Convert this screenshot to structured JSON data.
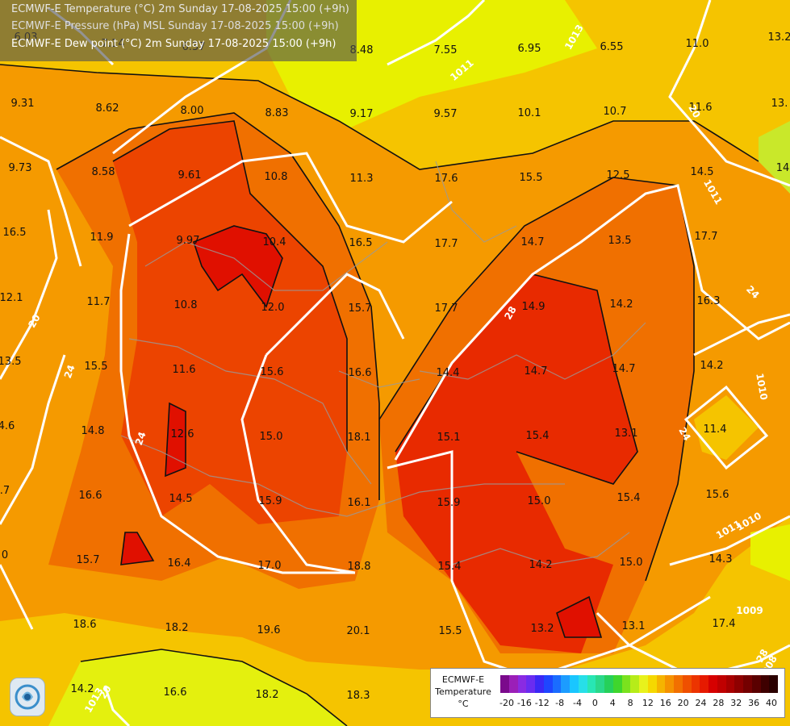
{
  "header": {
    "line1": "ECMWF-E Temperature (°C) 2m Sunday 17-08-2025 15:00 (+9h)",
    "line2": "ECMWF-E Pressure (hPa) MSL Sunday 17-08-2025 15:00 (+9h)",
    "line3": "ECMWF-E Dew point (°C) 2m Sunday 17-08-2025 15:00 (+9h)"
  },
  "dewpoint_labels": [
    "6.03",
    "7.14",
    "6.37",
    "8.48",
    "7.55",
    "6.95",
    "6.55",
    "11.0",
    "13.2",
    "9.31",
    "8.62",
    "8.00",
    "8.83",
    "9.17",
    "9.57",
    "10.1",
    "10.7",
    "11.6",
    "13.",
    "9.73",
    "8.58",
    "9.61",
    "10.8",
    "11.3",
    "17.6",
    "15.5",
    "12.5",
    "14.5",
    "14",
    "16.5",
    "11.9",
    "9.97",
    "10.4",
    "16.5",
    "17.7",
    "14.7",
    "13.5",
    "17.7",
    "12.1",
    "11.7",
    "10.8",
    "12.0",
    "15.7",
    "17.7",
    "14.9",
    "14.2",
    "16.3",
    "13.5",
    "15.5",
    "11.6",
    "15.6",
    "16.6",
    "14.4",
    "14.7",
    "14.7",
    "14.2",
    "4.6",
    "14.8",
    "12.6",
    "15.0",
    "18.1",
    "15.1",
    "15.4",
    "13.1",
    "11.4",
    "16.6",
    "14.5",
    "15.9",
    "16.1",
    "15.9",
    "15.0",
    "15.4",
    "15.6",
    ".7",
    "15.7",
    "16.4",
    "17.0",
    "18.8",
    "15.4",
    "14.2",
    "15.0",
    "14.3",
    "0",
    "18.6",
    "18.2",
    "19.6",
    "20.1",
    "15.5",
    "13.2",
    "13.1",
    "17.4",
    "14.2",
    "16.6",
    "18.2",
    "18.3"
  ],
  "isobar_labels": [
    "1013",
    "1011",
    "1011",
    "1011",
    "1010",
    "1010",
    "1009",
    "1008",
    "1013"
  ],
  "isotherm_labels": [
    "20",
    "20",
    "24",
    "24",
    "28",
    "24",
    "24",
    "28",
    "20"
  ],
  "legend": {
    "title_line1": "ECMWF-E",
    "title_line2": "Temperature",
    "title_line3": "°C",
    "ticks": [
      "-20",
      "-16",
      "-12",
      "-8",
      "-4",
      "0",
      "4",
      "8",
      "12",
      "16",
      "20",
      "24",
      "28",
      "32",
      "36",
      "40"
    ],
    "colors": [
      "#7b0a8c",
      "#9b1fb8",
      "#8a2be2",
      "#6a2cf0",
      "#3b28f5",
      "#1e46ff",
      "#1a6cff",
      "#1c9cff",
      "#19c6ff",
      "#27dfe8",
      "#28e6b4",
      "#2ad88a",
      "#26d05a",
      "#3fd62d",
      "#7ae21e",
      "#b6ec19",
      "#e8f21c",
      "#f5d800",
      "#f5b400",
      "#f59200",
      "#f27000",
      "#ef5000",
      "#ec3400",
      "#e61a00",
      "#d60000",
      "#c00000",
      "#a80000",
      "#8e0000",
      "#740000",
      "#5a0000",
      "#3e0000",
      "#2a0000"
    ]
  }
}
